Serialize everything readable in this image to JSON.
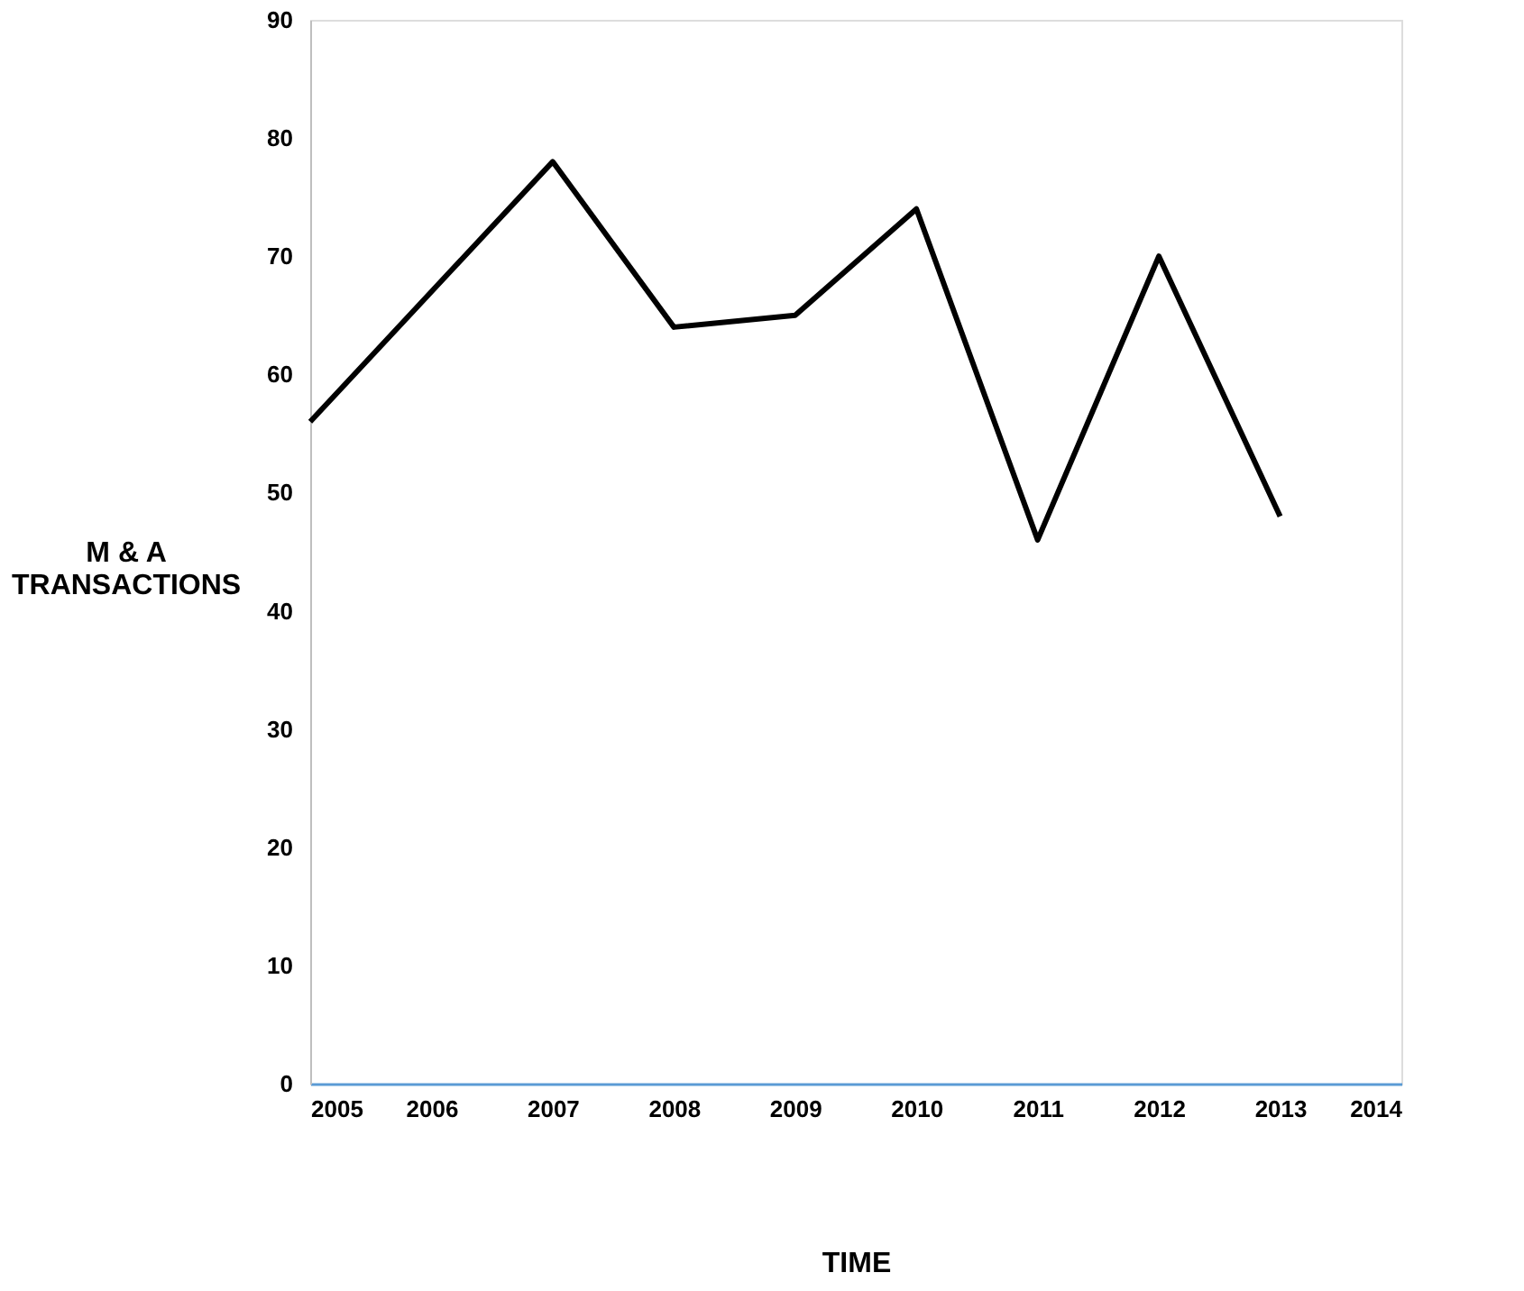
{
  "chart_data": {
    "type": "line",
    "xlabel": "TIME",
    "ylabel": "M & A TRANSACTIONS",
    "x": [
      2005,
      2006,
      2007,
      2008,
      2009,
      2010,
      2011,
      2012,
      2013
    ],
    "series": [
      {
        "color": "#000000",
        "values": [
          56,
          67,
          78,
          64,
          65,
          74,
          46,
          70,
          48
        ]
      }
    ],
    "xlim": [
      2005,
      2014
    ],
    "xticks": [
      2005,
      2006,
      2007,
      2008,
      2009,
      2010,
      2011,
      2012,
      2013,
      2014
    ],
    "ylim": [
      0,
      90
    ],
    "yticks": [
      0,
      10,
      20,
      30,
      40,
      50,
      60,
      70,
      80,
      90
    ],
    "grid": false,
    "marker": "none",
    "line_style": "solid"
  }
}
